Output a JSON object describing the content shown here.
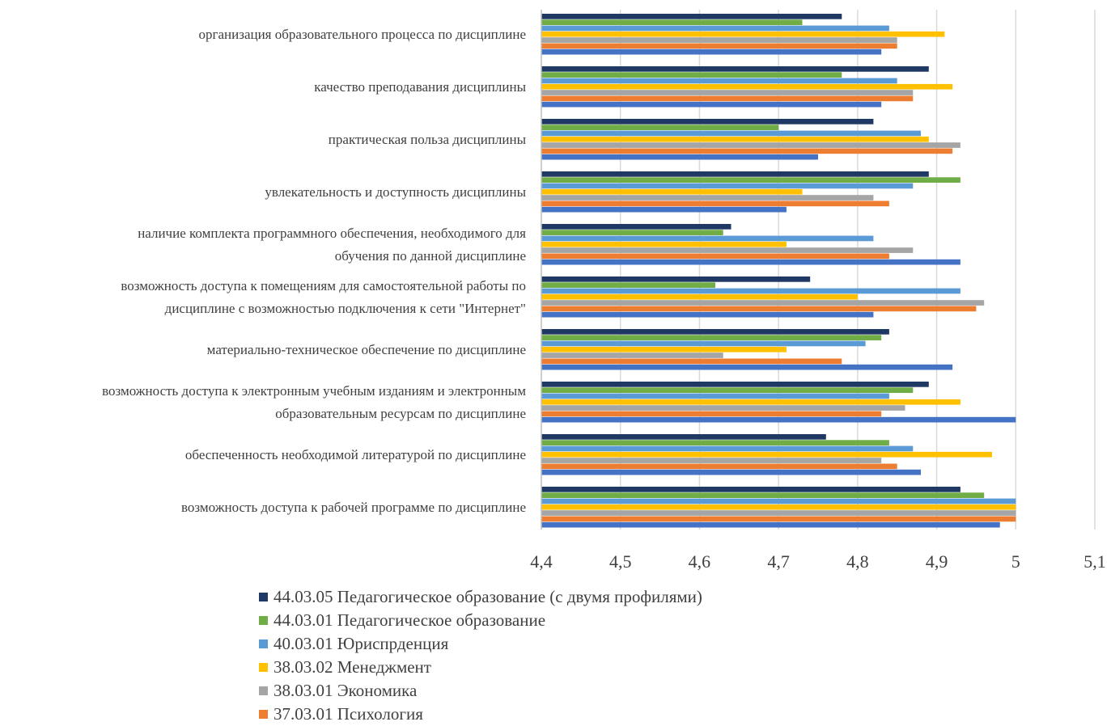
{
  "chart_data": {
    "type": "bar",
    "orientation": "horizontal",
    "title": "",
    "xlabel": "",
    "ylabel": "",
    "xlim": [
      4.4,
      5.1
    ],
    "ticks": [
      "4,4",
      "4,5",
      "4,6",
      "4,7",
      "4,8",
      "4,9",
      "5",
      "5,1"
    ],
    "grid": "vertical",
    "legend_position": "bottom",
    "categories": [
      "организация  образовательного процесса по  дисциплине",
      "качество преподавания дисциплины",
      "практическая польза дисциплины",
      "увлекательность и доступность дисциплины",
      "наличие  комплекта программного обеспечения, необходимого для обучения по данной  дисциплине",
      "возможность доступа к помещениям для самостоятельной работы по дисциплине  с возможностью подключения к сети \"Интернет\"",
      "материально-техническое обеспечение по дисциплине",
      "возможность доступа к электронным  учебным изданиям и электронным образовательным ресурсам по дисциплине",
      "обеспеченность необходимой литературой по  дисциплине",
      "возможность доступа к рабочей программе по дисциплине"
    ],
    "category_lines": [
      [
        "организация  образовательного процесса по  дисциплине"
      ],
      [
        "качество преподавания дисциплины"
      ],
      [
        "практическая польза дисциплины"
      ],
      [
        "увлекательность и доступность дисциплины"
      ],
      [
        "наличие  комплекта программного обеспечения, необходимого для",
        "обучения по данной  дисциплине"
      ],
      [
        "возможность доступа к помещениям для самостоятельной работы по",
        "дисциплине  с возможностью подключения к сети \"Интернет\""
      ],
      [
        "материально-техническое обеспечение по дисциплине"
      ],
      [
        "возможность доступа к электронным  учебным изданиям и электронным",
        "образовательным ресурсам по дисциплине"
      ],
      [
        "обеспеченность необходимой литературой по  дисциплине"
      ],
      [
        "возможность доступа к рабочей программе по дисциплине"
      ]
    ],
    "series": [
      {
        "name": "44.03.05 Педагогическое образование (с двумя профилями)",
        "color": "#203864",
        "values": [
          4.78,
          4.89,
          4.82,
          4.89,
          4.64,
          4.74,
          4.84,
          4.89,
          4.76,
          4.93
        ]
      },
      {
        "name": "44.03.01 Педагогическое образование",
        "color": "#70ad47",
        "values": [
          4.73,
          4.78,
          4.7,
          4.93,
          4.63,
          4.62,
          4.83,
          4.87,
          4.84,
          4.96
        ]
      },
      {
        "name": "40.03.01 Юриспрденция",
        "color": "#5b9bd5",
        "values": [
          4.84,
          4.85,
          4.88,
          4.87,
          4.82,
          4.93,
          4.81,
          4.84,
          4.87,
          5.0
        ]
      },
      {
        "name": "38.03.02 Менеджмент",
        "color": "#ffc000",
        "values": [
          4.91,
          4.92,
          4.89,
          4.73,
          4.71,
          4.8,
          4.71,
          4.93,
          4.97,
          5.0
        ]
      },
      {
        "name": "38.03.01 Экономика",
        "color": "#a5a5a5",
        "values": [
          4.85,
          4.87,
          4.93,
          4.82,
          4.87,
          4.96,
          4.63,
          4.86,
          4.83,
          5.0
        ]
      },
      {
        "name": "37.03.01 Психология",
        "color": "#ed7d31",
        "values": [
          4.85,
          4.87,
          4.92,
          4.84,
          4.84,
          4.95,
          4.78,
          4.83,
          4.85,
          5.0
        ]
      },
      {
        "name": "",
        "color": "#4472c4",
        "values": [
          4.83,
          4.83,
          4.75,
          4.71,
          4.93,
          4.82,
          4.92,
          5.0,
          4.88,
          4.98
        ]
      }
    ]
  }
}
